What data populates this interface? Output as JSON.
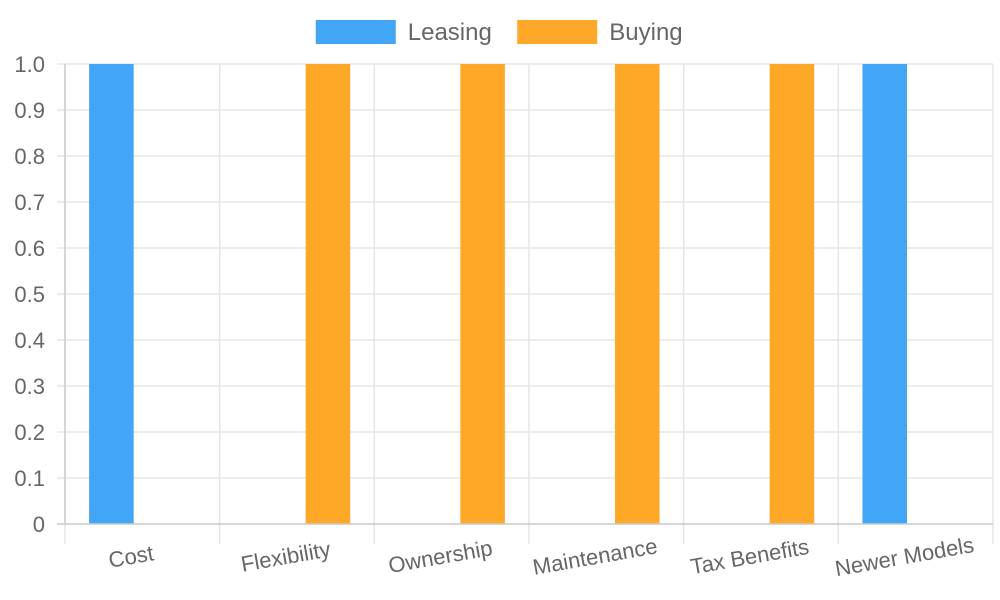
{
  "chart_data": {
    "type": "bar",
    "categories": [
      "Cost",
      "Flexibility",
      "Ownership",
      "Maintenance",
      "Tax Benefits",
      "Newer Models"
    ],
    "series": [
      {
        "name": "Leasing",
        "color": "#42a5f5",
        "values": [
          1,
          0,
          0,
          0,
          0,
          1
        ]
      },
      {
        "name": "Buying",
        "color": "#ffa726",
        "values": [
          0,
          1,
          1,
          1,
          1,
          0
        ]
      }
    ],
    "ylim": [
      0,
      1
    ],
    "yticks": [
      "0",
      "0.1",
      "0.2",
      "0.3",
      "0.4",
      "0.5",
      "0.6",
      "0.7",
      "0.8",
      "0.9",
      "1.0"
    ],
    "grid": true,
    "legend_position": "top-center",
    "x_tick_rotation": "slanted"
  }
}
